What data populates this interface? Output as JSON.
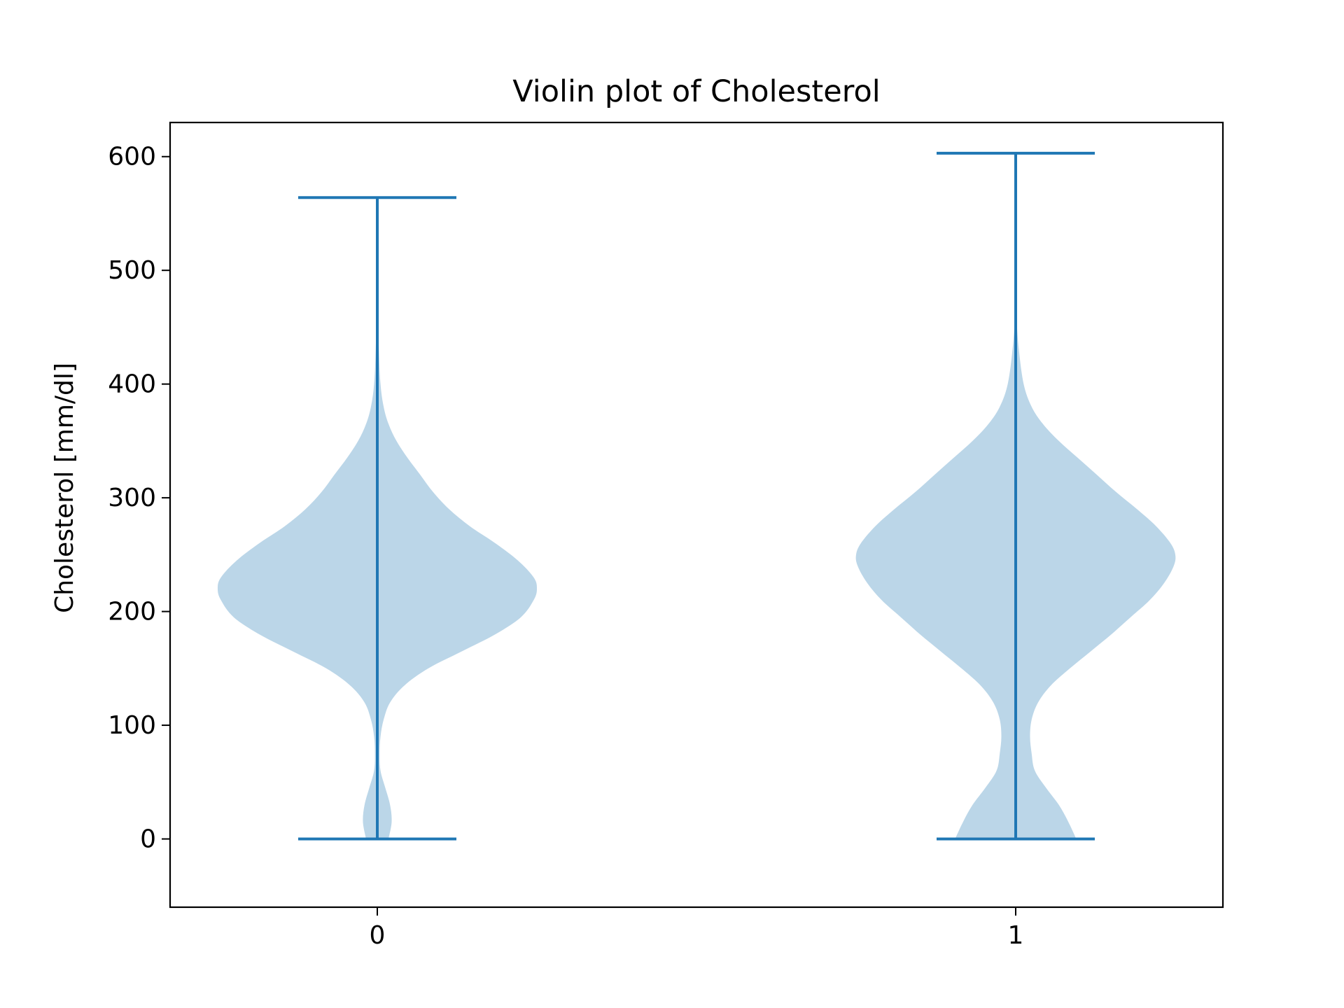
{
  "chart_data": {
    "type": "violin",
    "title": "Violin plot of Cholesterol",
    "xlabel": "",
    "ylabel": "Cholesterol [mm/dl]",
    "categories": [
      "0",
      "1"
    ],
    "ylim": [
      -60,
      630
    ],
    "yticks": [
      0,
      100,
      200,
      300,
      400,
      500,
      600
    ],
    "ytick_labels": [
      "0",
      "100",
      "200",
      "300",
      "400",
      "500",
      "600"
    ],
    "xtick_labels": [
      "0",
      "1"
    ],
    "grid": false,
    "colors": {
      "body": "#1f77b4",
      "body_opacity": 0.3,
      "lines": "#1f77b4"
    },
    "series": [
      {
        "category": "0",
        "min": 0,
        "max": 564,
        "density": [
          [
            0,
            0.07
          ],
          [
            15,
            0.09
          ],
          [
            30,
            0.08
          ],
          [
            45,
            0.05
          ],
          [
            60,
            0.02
          ],
          [
            75,
            0.015
          ],
          [
            90,
            0.02
          ],
          [
            105,
            0.04
          ],
          [
            120,
            0.08
          ],
          [
            135,
            0.17
          ],
          [
            150,
            0.32
          ],
          [
            165,
            0.53
          ],
          [
            180,
            0.74
          ],
          [
            195,
            0.9
          ],
          [
            210,
            0.98
          ],
          [
            220,
            1.0
          ],
          [
            230,
            0.98
          ],
          [
            245,
            0.88
          ],
          [
            260,
            0.74
          ],
          [
            275,
            0.58
          ],
          [
            290,
            0.45
          ],
          [
            305,
            0.35
          ],
          [
            320,
            0.27
          ],
          [
            335,
            0.19
          ],
          [
            350,
            0.12
          ],
          [
            365,
            0.07
          ],
          [
            380,
            0.04
          ],
          [
            400,
            0.02
          ],
          [
            430,
            0.01
          ],
          [
            470,
            0.003
          ],
          [
            520,
            0.0
          ],
          [
            564,
            0.0
          ]
        ]
      },
      {
        "category": "1",
        "min": 0,
        "max": 603,
        "density": [
          [
            0,
            0.38
          ],
          [
            15,
            0.33
          ],
          [
            30,
            0.27
          ],
          [
            45,
            0.19
          ],
          [
            60,
            0.12
          ],
          [
            75,
            0.1
          ],
          [
            90,
            0.09
          ],
          [
            105,
            0.1
          ],
          [
            120,
            0.14
          ],
          [
            135,
            0.22
          ],
          [
            150,
            0.34
          ],
          [
            165,
            0.47
          ],
          [
            180,
            0.6
          ],
          [
            195,
            0.72
          ],
          [
            210,
            0.84
          ],
          [
            225,
            0.93
          ],
          [
            240,
            0.99
          ],
          [
            250,
            1.0
          ],
          [
            260,
            0.97
          ],
          [
            275,
            0.88
          ],
          [
            290,
            0.76
          ],
          [
            305,
            0.63
          ],
          [
            320,
            0.51
          ],
          [
            335,
            0.39
          ],
          [
            350,
            0.27
          ],
          [
            365,
            0.17
          ],
          [
            380,
            0.1
          ],
          [
            400,
            0.05
          ],
          [
            430,
            0.02
          ],
          [
            460,
            0.005
          ],
          [
            500,
            0.0
          ],
          [
            603,
            0.0
          ]
        ]
      }
    ]
  }
}
